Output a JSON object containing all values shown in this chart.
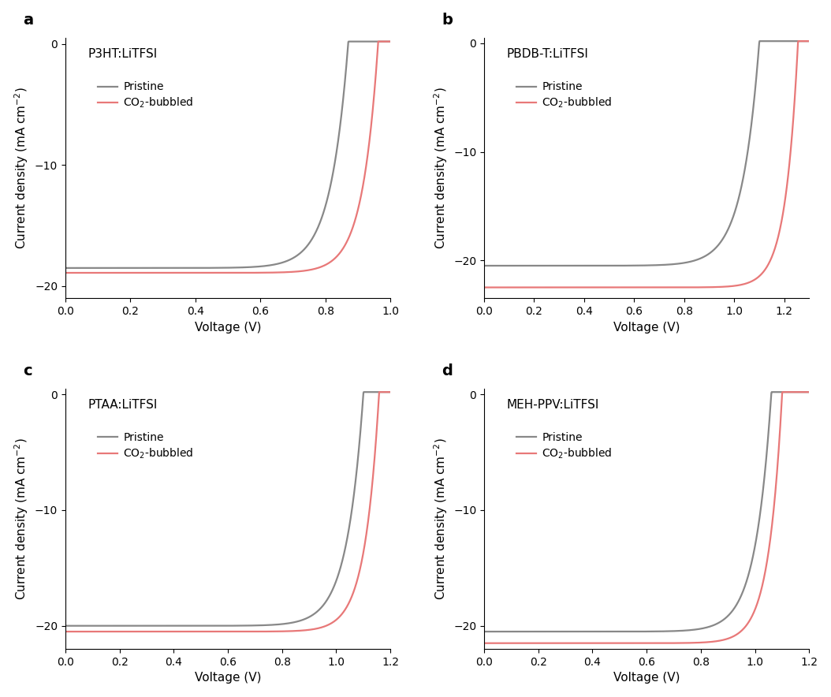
{
  "panels": [
    {
      "label": "a",
      "title": "P3HT:LiTFSI",
      "xlim": [
        0,
        1.0
      ],
      "ylim": [
        -21,
        0.5
      ],
      "xticks": [
        0,
        0.2,
        0.4,
        0.6,
        0.8,
        1.0
      ],
      "yticks": [
        0,
        -10,
        -20
      ],
      "pristine": {
        "Jsc": -18.5,
        "Voc": 0.87,
        "n": 16,
        "slope_factor": 0.055
      },
      "co2": {
        "Jsc": -18.9,
        "Voc": 0.962,
        "n": 20,
        "slope_factor": 0.044
      }
    },
    {
      "label": "b",
      "title": "PBDB-T:LiTFSI",
      "xlim": [
        0,
        1.3
      ],
      "ylim": [
        -23.5,
        0.5
      ],
      "xticks": [
        0,
        0.2,
        0.4,
        0.6,
        0.8,
        1.0,
        1.2
      ],
      "yticks": [
        0,
        -10,
        -20
      ],
      "pristine": {
        "Jsc": -20.5,
        "Voc": 1.1,
        "n": 16,
        "slope_factor": 0.055
      },
      "co2": {
        "Jsc": -22.5,
        "Voc": 1.255,
        "n": 25,
        "slope_factor": 0.038
      }
    },
    {
      "label": "c",
      "title": "PTAA:LiTFSI",
      "xlim": [
        0,
        1.2
      ],
      "ylim": [
        -22,
        0.5
      ],
      "xticks": [
        0,
        0.2,
        0.4,
        0.6,
        0.8,
        1.0,
        1.2
      ],
      "yticks": [
        0,
        -10,
        -20
      ],
      "pristine": {
        "Jsc": -20.0,
        "Voc": 1.1,
        "n": 18,
        "slope_factor": 0.05
      },
      "co2": {
        "Jsc": -20.5,
        "Voc": 1.158,
        "n": 22,
        "slope_factor": 0.042
      }
    },
    {
      "label": "d",
      "title": "MEH-PPV:LiTFSI",
      "xlim": [
        0,
        1.2
      ],
      "ylim": [
        -22,
        0.5
      ],
      "xticks": [
        0,
        0.2,
        0.4,
        0.6,
        0.8,
        1.0,
        1.2
      ],
      "yticks": [
        0,
        -10,
        -20
      ],
      "pristine": {
        "Jsc": -20.5,
        "Voc": 1.06,
        "n": 18,
        "slope_factor": 0.048
      },
      "co2": {
        "Jsc": -21.5,
        "Voc": 1.1,
        "n": 22,
        "slope_factor": 0.04
      }
    }
  ],
  "pristine_color": "#888888",
  "co2_color": "#E87878",
  "linewidth": 1.6,
  "ylabel": "Current density (mA cm$^{-2}$)",
  "xlabel": "Voltage (V)",
  "legend_pristine": "Pristine",
  "legend_co2": "CO$_2$-bubbled",
  "background_color": "#ffffff",
  "axis_label_fontsize": 11,
  "tick_fontsize": 10,
  "legend_fontsize": 10,
  "title_fontsize": 11,
  "panel_label_fontsize": 14
}
